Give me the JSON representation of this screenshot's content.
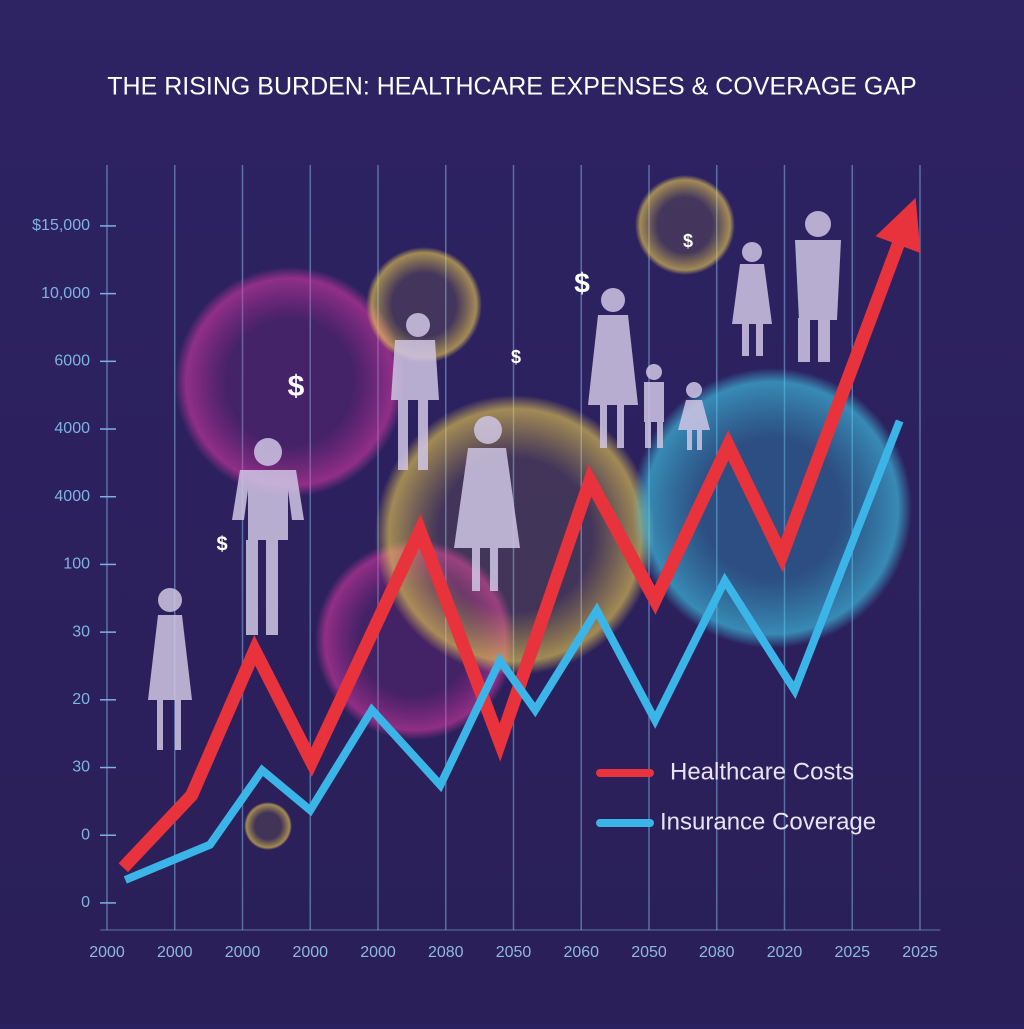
{
  "chart_data": {
    "type": "line",
    "title": "THE RISING BURDEN: HEALTHCARE EXPENSES & COVERAGE GAP",
    "xlim": [
      -0.1,
      12.3
    ],
    "xticks": [
      {
        "value": 0,
        "label": "2000"
      },
      {
        "value": 1,
        "label": "2000"
      },
      {
        "value": 2,
        "label": "2000"
      },
      {
        "value": 3,
        "label": "2000"
      },
      {
        "value": 4,
        "label": "2000"
      },
      {
        "value": 5,
        "label": "2080"
      },
      {
        "value": 6,
        "label": "2050"
      },
      {
        "value": 7,
        "label": "2060"
      },
      {
        "value": 8,
        "label": "2050"
      },
      {
        "value": 9,
        "label": "2080"
      },
      {
        "value": 10,
        "label": "2020"
      },
      {
        "value": 11,
        "label": "2025"
      },
      {
        "value": 12,
        "label": "2025"
      }
    ],
    "ylim": [
      -0.4,
      10.9
    ],
    "yticks": [
      0,
      {
        "value": 1,
        "label": "0"
      },
      {
        "value": 2,
        "label": "30"
      },
      {
        "value": 3,
        "label": "20"
      },
      {
        "value": 4,
        "label": "30"
      },
      {
        "value": 5,
        "label": "100"
      },
      {
        "value": 6,
        "label": "4000"
      },
      {
        "value": 7,
        "label": "4000"
      },
      {
        "value": 8,
        "label": "6000"
      },
      {
        "value": 9,
        "label": "10,000"
      },
      {
        "value": 10,
        "label": "$15,000"
      }
    ],
    "series": [
      {
        "name": "Healthcare Costs",
        "color": "#e8323c",
        "x": [
          0.24,
          1.25,
          2.18,
          3.02,
          4.62,
          5.8,
          7.13,
          8.09,
          9.17,
          9.96,
          11.78
        ],
        "values": [
          0.52,
          1.59,
          3.73,
          2.08,
          5.5,
          2.37,
          6.24,
          4.47,
          6.76,
          5.13,
          10.0
        ]
      },
      {
        "name": "Insurance Coverage",
        "color": "#3bb5e8",
        "x": [
          0.27,
          1.52,
          2.29,
          3.0,
          3.91,
          4.92,
          5.8,
          6.32,
          7.23,
          8.09,
          9.12,
          10.15,
          11.7
        ],
        "values": [
          0.34,
          0.86,
          1.96,
          1.37,
          2.85,
          1.74,
          3.58,
          2.85,
          4.32,
          2.7,
          4.76,
          3.14,
          7.12
        ]
      }
    ],
    "annotations": [
      "$",
      "$",
      "$",
      "$",
      "$"
    ]
  }
}
